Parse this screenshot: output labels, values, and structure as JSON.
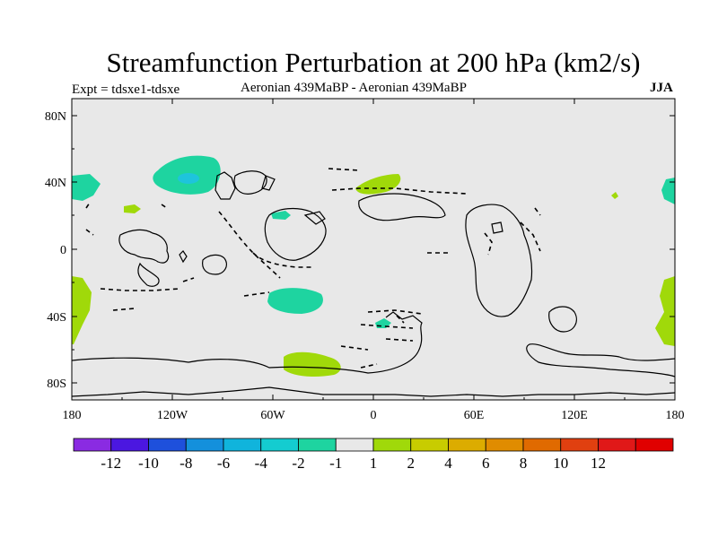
{
  "title": "Streamfunction Perturbation at 200 hPa (km2/s)",
  "subtitle_left": "Expt = tdsxe1-tdsxe",
  "subtitle_center": "Aeronian 439MaBP - Aeronian 439MaBP",
  "subtitle_right": "JJA",
  "colors": {
    "land_fill": "#e8e8e8",
    "positive_fill": "#a0d90a",
    "negative_fill": "#1ed4a0",
    "negative_core": "#1ec4dc",
    "line": "#000000"
  },
  "y_axis_labels": [
    "80N",
    "40N",
    "0",
    "40S",
    "80S"
  ],
  "x_axis_labels": [
    "180",
    "120W",
    "60W",
    "0",
    "60E",
    "120E",
    "180"
  ],
  "colorbar": {
    "colors": [
      "#8a2be2",
      "#4b17e0",
      "#1e50dc",
      "#1490dc",
      "#10b4dc",
      "#14ccd0",
      "#1ed4a0",
      "#e8e8e8",
      "#a0d90a",
      "#c8cc00",
      "#dcac00",
      "#e08c00",
      "#e06a00",
      "#e04010",
      "#e01818",
      "#e00000"
    ],
    "labels": [
      "-12",
      "-10",
      "-8",
      "-6",
      "-4",
      "-2",
      "-1",
      "1",
      "2",
      "4",
      "6",
      "8",
      "10",
      "12"
    ]
  }
}
